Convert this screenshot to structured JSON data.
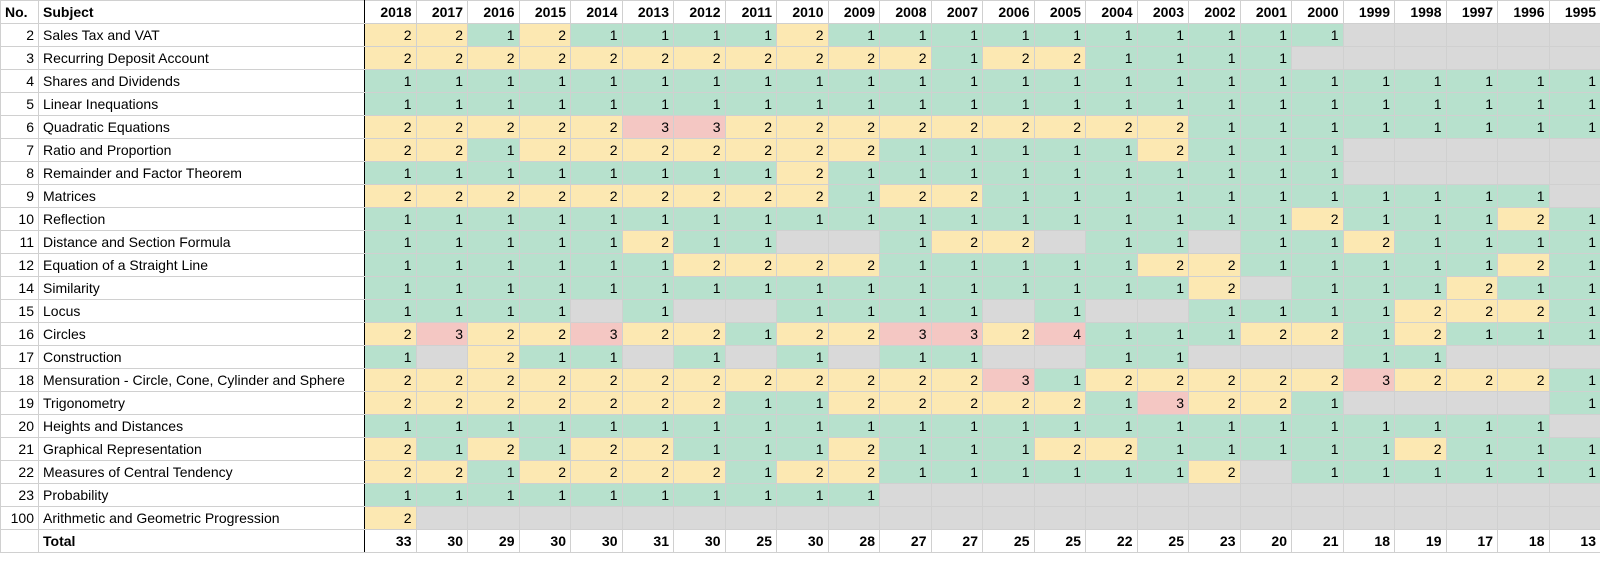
{
  "table": {
    "headers": {
      "no": "No.",
      "subject": "Subject"
    },
    "years": [
      "2018",
      "2017",
      "2016",
      "2015",
      "2014",
      "2013",
      "2012",
      "2011",
      "2010",
      "2009",
      "2008",
      "2007",
      "2006",
      "2005",
      "2004",
      "2003",
      "2002",
      "2001",
      "2000",
      "1999",
      "1998",
      "1997",
      "1996",
      "1995"
    ],
    "rows": [
      {
        "no": "2",
        "subject": "Sales Tax and VAT",
        "values": [
          2,
          2,
          1,
          2,
          1,
          1,
          1,
          1,
          2,
          1,
          1,
          1,
          1,
          1,
          1,
          1,
          1,
          1,
          1,
          null,
          null,
          null,
          null,
          null
        ]
      },
      {
        "no": "3",
        "subject": "Recurring Deposit Account",
        "values": [
          2,
          2,
          2,
          2,
          2,
          2,
          2,
          2,
          2,
          2,
          2,
          1,
          2,
          2,
          1,
          1,
          1,
          1,
          null,
          null,
          null,
          null,
          null,
          null
        ]
      },
      {
        "no": "4",
        "subject": "Shares and Dividends",
        "values": [
          1,
          1,
          1,
          1,
          1,
          1,
          1,
          1,
          1,
          1,
          1,
          1,
          1,
          1,
          1,
          1,
          1,
          1,
          1,
          1,
          1,
          1,
          1,
          1
        ]
      },
      {
        "no": "5",
        "subject": "Linear Inequations",
        "values": [
          1,
          1,
          1,
          1,
          1,
          1,
          1,
          1,
          1,
          1,
          1,
          1,
          1,
          1,
          1,
          1,
          1,
          1,
          1,
          1,
          1,
          1,
          1,
          1
        ]
      },
      {
        "no": "6",
        "subject": "Quadratic Equations",
        "values": [
          2,
          2,
          2,
          2,
          2,
          3,
          3,
          2,
          2,
          2,
          2,
          2,
          2,
          2,
          2,
          2,
          1,
          1,
          1,
          1,
          1,
          1,
          1,
          1
        ]
      },
      {
        "no": "7",
        "subject": "Ratio and Proportion",
        "values": [
          2,
          2,
          1,
          2,
          2,
          2,
          2,
          2,
          2,
          2,
          1,
          1,
          1,
          1,
          1,
          2,
          1,
          1,
          1,
          null,
          null,
          null,
          null,
          null
        ]
      },
      {
        "no": "8",
        "subject": "Remainder and Factor Theorem",
        "values": [
          1,
          1,
          1,
          1,
          1,
          1,
          1,
          1,
          2,
          1,
          1,
          1,
          1,
          1,
          1,
          1,
          1,
          1,
          1,
          null,
          null,
          null,
          null,
          null
        ]
      },
      {
        "no": "9",
        "subject": "Matrices",
        "values": [
          2,
          2,
          2,
          2,
          2,
          2,
          2,
          2,
          2,
          1,
          2,
          2,
          1,
          1,
          1,
          1,
          1,
          1,
          1,
          1,
          1,
          1,
          1,
          null
        ]
      },
      {
        "no": "10",
        "subject": "Reflection",
        "values": [
          1,
          1,
          1,
          1,
          1,
          1,
          1,
          1,
          1,
          1,
          1,
          1,
          1,
          1,
          1,
          1,
          1,
          1,
          2,
          1,
          1,
          1,
          2,
          1
        ]
      },
      {
        "no": "11",
        "subject": "Distance and Section Formula",
        "values": [
          1,
          1,
          1,
          1,
          1,
          2,
          1,
          1,
          null,
          null,
          1,
          2,
          2,
          null,
          1,
          1,
          null,
          1,
          1,
          2,
          1,
          1,
          1,
          1
        ]
      },
      {
        "no": "12",
        "subject": "Equation of a Straight Line",
        "values": [
          1,
          1,
          1,
          1,
          1,
          1,
          2,
          2,
          2,
          2,
          1,
          1,
          1,
          1,
          1,
          2,
          2,
          1,
          1,
          1,
          1,
          1,
          2,
          1
        ]
      },
      {
        "no": "14",
        "subject": "Similarity",
        "values": [
          1,
          1,
          1,
          1,
          1,
          1,
          1,
          1,
          1,
          1,
          1,
          1,
          1,
          1,
          1,
          1,
          2,
          null,
          1,
          1,
          1,
          2,
          1,
          1
        ]
      },
      {
        "no": "15",
        "subject": "Locus",
        "values": [
          1,
          1,
          1,
          1,
          null,
          1,
          null,
          null,
          1,
          1,
          1,
          1,
          null,
          1,
          null,
          null,
          1,
          1,
          1,
          1,
          2,
          2,
          2,
          1
        ]
      },
      {
        "no": "16",
        "subject": "Circles",
        "values": [
          2,
          3,
          2,
          2,
          3,
          2,
          2,
          1,
          2,
          2,
          3,
          3,
          2,
          4,
          1,
          1,
          1,
          2,
          2,
          1,
          2,
          1,
          1,
          1
        ]
      },
      {
        "no": "17",
        "subject": "Construction",
        "values": [
          1,
          null,
          2,
          1,
          1,
          null,
          1,
          null,
          1,
          null,
          1,
          1,
          null,
          null,
          1,
          1,
          null,
          null,
          null,
          1,
          1,
          null,
          null,
          null
        ]
      },
      {
        "no": "18",
        "subject": "Mensuration - Circle, Cone, Cylinder and Sphere",
        "values": [
          2,
          2,
          2,
          2,
          2,
          2,
          2,
          2,
          2,
          2,
          2,
          2,
          3,
          1,
          2,
          2,
          2,
          2,
          2,
          3,
          2,
          2,
          2,
          1
        ]
      },
      {
        "no": "19",
        "subject": "Trigonometry",
        "values": [
          2,
          2,
          2,
          2,
          2,
          2,
          2,
          1,
          1,
          2,
          2,
          2,
          2,
          2,
          1,
          3,
          2,
          2,
          1,
          null,
          null,
          null,
          null,
          1
        ]
      },
      {
        "no": "20",
        "subject": "Heights and Distances",
        "values": [
          1,
          1,
          1,
          1,
          1,
          1,
          1,
          1,
          1,
          1,
          1,
          1,
          1,
          1,
          1,
          1,
          1,
          1,
          1,
          1,
          1,
          1,
          1,
          null
        ]
      },
      {
        "no": "21",
        "subject": "Graphical Representation",
        "values": [
          2,
          1,
          2,
          1,
          2,
          2,
          1,
          1,
          1,
          2,
          1,
          1,
          1,
          2,
          2,
          1,
          1,
          1,
          1,
          1,
          2,
          1,
          1,
          1
        ]
      },
      {
        "no": "22",
        "subject": "Measures of Central Tendency",
        "values": [
          2,
          2,
          1,
          2,
          2,
          2,
          2,
          1,
          2,
          2,
          1,
          1,
          1,
          1,
          1,
          1,
          2,
          null,
          1,
          1,
          1,
          1,
          1,
          1
        ]
      },
      {
        "no": "23",
        "subject": "Probability",
        "values": [
          1,
          1,
          1,
          1,
          1,
          1,
          1,
          1,
          1,
          1,
          null,
          null,
          null,
          null,
          null,
          null,
          null,
          null,
          null,
          null,
          null,
          null,
          null,
          null
        ]
      },
      {
        "no": "100",
        "subject": "Arithmetic and Geometric Progression",
        "values": [
          2,
          null,
          null,
          null,
          null,
          null,
          null,
          null,
          null,
          null,
          null,
          null,
          null,
          null,
          null,
          null,
          null,
          null,
          null,
          null,
          null,
          null,
          null,
          null
        ]
      }
    ],
    "total": {
      "label": "Total",
      "values": [
        33,
        30,
        29,
        30,
        30,
        31,
        30,
        25,
        30,
        28,
        27,
        27,
        25,
        25,
        22,
        25,
        23,
        20,
        21,
        18,
        19,
        17,
        18,
        13
      ]
    }
  },
  "colors": {
    "one": "#b7e1cd",
    "two": "#fce8b2",
    "three_plus": "#f4c7c3",
    "empty": "#d9d9d9"
  }
}
